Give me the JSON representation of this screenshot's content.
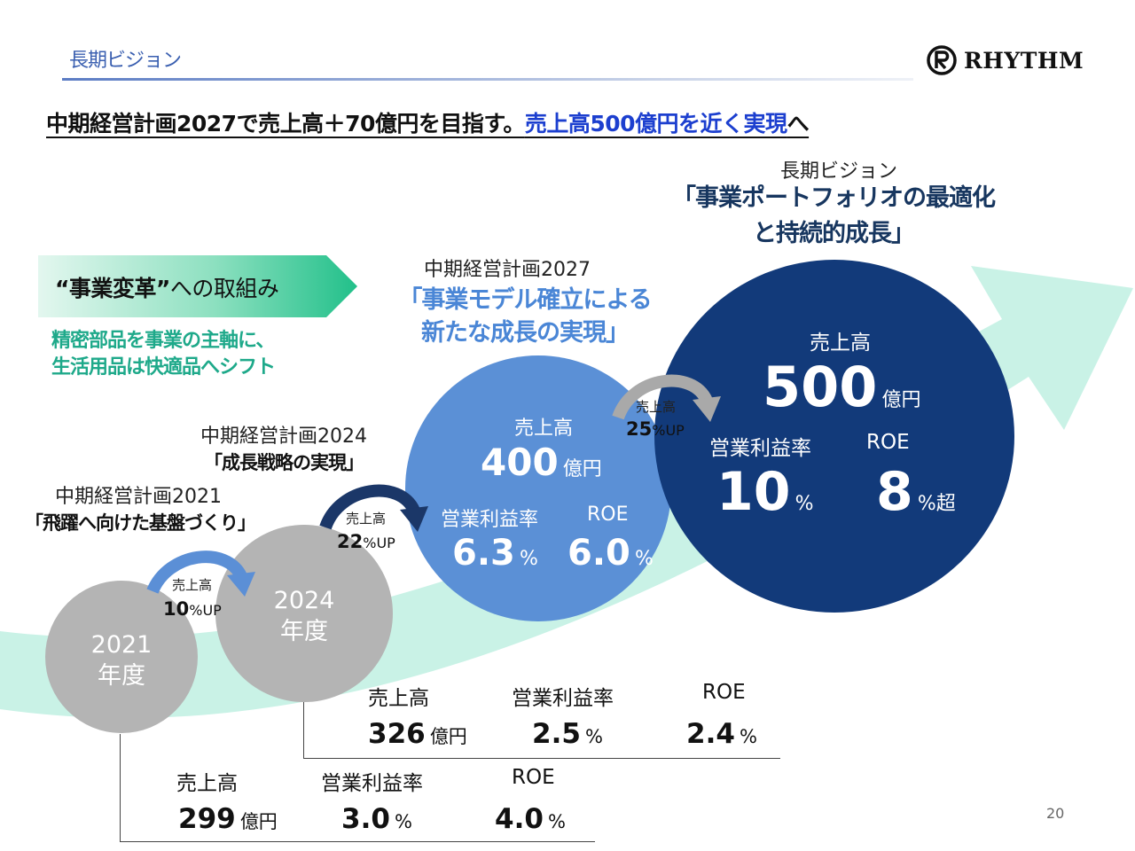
{
  "header": {
    "section_title": "長期ビジョン",
    "logo_text": "RHYTHM"
  },
  "headline": {
    "part1": "中期経営計画2027で売上高＋70億円を目指す。",
    "part2": "売上高500億円を近く実現",
    "part3": "へ"
  },
  "badge": {
    "strong": "“事業変革”",
    "rest": "への取組み"
  },
  "green_note": {
    "line1": "精密部品を事業の主軸に、",
    "line2": "生活用品は快適品へシフト"
  },
  "plans": {
    "p2021": {
      "title": "中期経営計画2021",
      "subtitle": "「飛躍へ向けた基盤づくり」"
    },
    "p2024": {
      "title": "中期経営計画2024",
      "subtitle": "「成長戦略の実現」"
    },
    "p2027": {
      "title": "中期経営計画2027",
      "subtitle_line1": "「事業モデル確立による",
      "subtitle_line2": "新たな成長の実現」"
    },
    "vision": {
      "title": "長期ビジョン",
      "subtitle_line1": "「事業ポートフォリオの最適化",
      "subtitle_line2": "と持続的成長」"
    }
  },
  "circles": {
    "c2021": {
      "year": "2021",
      "unit": "年度"
    },
    "c2024": {
      "year": "2024",
      "unit": "年度"
    },
    "c2027": {
      "sales_label": "売上高",
      "sales_value": "400",
      "sales_unit": "億円",
      "margin_label": "営業利益率",
      "margin_value": "6.3",
      "margin_unit": "%",
      "roe_label": "ROE",
      "roe_value": "6.0",
      "roe_unit": "%"
    },
    "vision": {
      "sales_label": "売上高",
      "sales_value": "500",
      "sales_unit": "億円",
      "margin_label": "営業利益率",
      "margin_value": "10",
      "margin_unit": "%",
      "roe_label": "ROE",
      "roe_value": "8",
      "roe_unit": "%超"
    }
  },
  "growth": [
    {
      "label": "売上高",
      "value": "10",
      "suffix": "%UP",
      "color": "#5b8fd6"
    },
    {
      "label": "売上高",
      "value": "22",
      "suffix": "%UP",
      "color": "#1b3768"
    },
    {
      "label": "売上高",
      "value": "25",
      "suffix": "%UP",
      "color": "#a9a9a9"
    }
  ],
  "table_2024": {
    "sales_label": "売上高",
    "sales_value": "326",
    "sales_unit": "億円",
    "margin_label": "営業利益率",
    "margin_value": "2.5",
    "margin_unit": "%",
    "roe_label": "ROE",
    "roe_value": "2.4",
    "roe_unit": "%"
  },
  "table_2021": {
    "sales_label": "売上高",
    "sales_value": "299",
    "sales_unit": "億円",
    "margin_label": "営業利益率",
    "margin_value": "3.0",
    "margin_unit": "%",
    "roe_label": "ROE",
    "roe_value": "4.0",
    "roe_unit": "%"
  },
  "page_number": "20",
  "colors": {
    "arrow_band": "#bff0e2",
    "badge_green": "#2fc48f",
    "accent_blue": "#1c3fcf",
    "circle_mid": "#5b90d6",
    "circle_dark": "#123a7a",
    "circle_gray": "#b4b4b4"
  }
}
